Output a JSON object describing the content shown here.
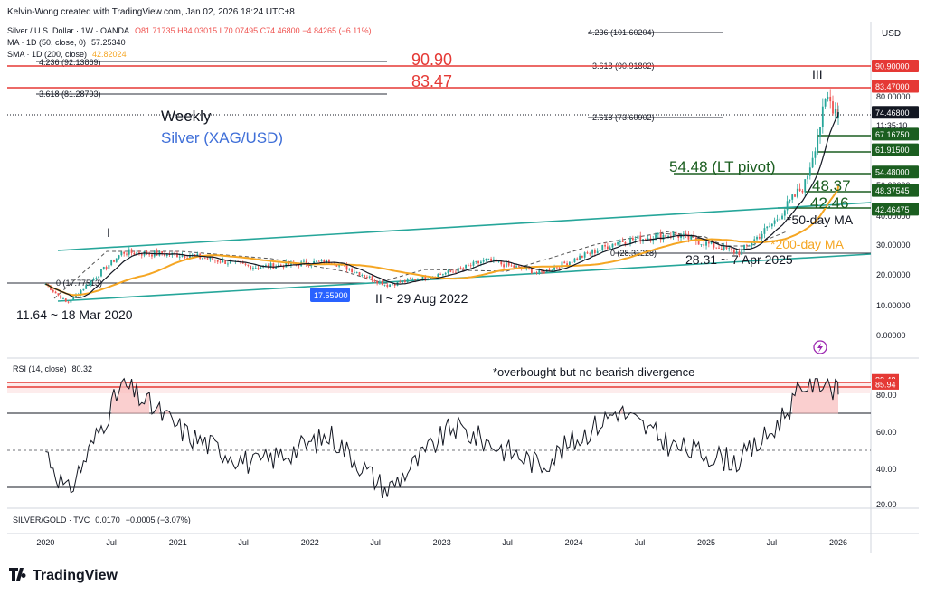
{
  "header": {
    "author_line": "Kelvin-Wong created with TradingView.com, Jan 02, 2026 18:24 UTC+8",
    "symbol_line": "Silver / U.S. Dollar · 1W · OANDA",
    "ohlc": "O81.71735  H84.03015  L70.07495  C74.46800  −4.84265 (−6.11%)",
    "ma_line": "MA · 1D (50, close, 0)",
    "ma_value": "57.25340",
    "sma_line": "SMA · 1D (200, close)",
    "sma_value": "42.82024",
    "currency": "USD"
  },
  "annotations": {
    "weekly": "Weekly",
    "instrument": "Silver (XAG/USD)",
    "level_9090": "90.90",
    "level_8347": "83.47",
    "wave_1": "I",
    "wave_2": "II ~ 29 Aug 2022",
    "wave_3": "III",
    "low_2020": "11.64 ~ 18 Mar 2020",
    "low_2025": "28.31 ~ 7 Apr 2025",
    "lt_pivot": "54.48 (LT pivot)",
    "level_4837": "48.37",
    "level_4246": "42.46",
    "ma50_label": "*50-day MA",
    "ma200_label": "*200-day MA",
    "rsi_note": "*overbought but no bearish divergence"
  },
  "fib_labels": [
    {
      "text": "4.236 (101.60204)"
    },
    {
      "text": "4.236 (92.13869)"
    },
    {
      "text": "3.618 (90.91802)"
    },
    {
      "text": "3.618 (81.28793)"
    },
    {
      "text": "2.618 (73.60902)"
    },
    {
      "text": "0 (17.77513)"
    },
    {
      "text": "0 (28.31228)"
    }
  ],
  "price_axis": {
    "ticks": [
      "80.00000",
      "50.00000",
      "40.00000",
      "30.00000",
      "20.00000",
      "10.00000",
      "0.00000"
    ],
    "tags": [
      {
        "text": "90.90000",
        "value": 90.9,
        "color": "#e53935"
      },
      {
        "text": "83.47000",
        "value": 83.47,
        "color": "#e53935"
      },
      {
        "text": "74.46800",
        "value": 74.468,
        "color": "#131722"
      },
      {
        "text": "67.16750",
        "value": 67.1675,
        "color": "#1b5e20"
      },
      {
        "text": "61.91500",
        "value": 61.915,
        "color": "#1b5e20"
      },
      {
        "text": "54.48000",
        "value": 54.48,
        "color": "#1b5e20"
      },
      {
        "text": "48.37545",
        "value": 48.37545,
        "color": "#1b5e20"
      },
      {
        "text": "42.46475",
        "value": 42.46475,
        "color": "#1b5e20"
      }
    ],
    "countdown": "11:35:10",
    "low_tag": "17.55900"
  },
  "rsi": {
    "label": "RSI (14, close)",
    "value": "80.32",
    "ticks": [
      "80.00",
      "60.00",
      "40.00",
      "20.00"
    ],
    "tags": [
      {
        "text": "88.48",
        "value": 88.48
      },
      {
        "text": "85.94",
        "value": 85.94
      }
    ]
  },
  "ratio_label": {
    "name": "SILVER/GOLD · TVC",
    "value": "0.0170",
    "change": "−0.0005 (−3.07%)"
  },
  "time_axis": [
    "2020",
    "Jul",
    "2021",
    "Jul",
    "2022",
    "Jul",
    "2023",
    "Jul",
    "2024",
    "Jul",
    "2025",
    "Jul",
    "2026"
  ],
  "brand": "TradingView",
  "colors": {
    "up": "#26a69a",
    "down": "#ef5350",
    "ma50": "#131722",
    "ma200": "#f5a623",
    "channel": "#26a69a",
    "resistance": "#e53935",
    "support": "#1b5e20",
    "rsi": "#131722"
  },
  "chart_data": [
    {
      "type": "line",
      "title": "Silver (XAG/USD) Weekly",
      "xlabel": "",
      "ylabel": "USD",
      "ylim": [
        0,
        100
      ],
      "x": [
        "2020-01",
        "2020-03",
        "2020-08",
        "2021-02",
        "2021-08",
        "2022-03",
        "2022-08",
        "2023-02",
        "2023-05",
        "2023-10",
        "2024-05",
        "2024-10",
        "2025-04",
        "2025-07",
        "2025-10",
        "2025-12",
        "2026-01"
      ],
      "series": [
        {
          "name": "Silver close",
          "values": [
            17.9,
            11.64,
            28.5,
            27.5,
            23.5,
            25.5,
            17.56,
            22.0,
            25.8,
            21.5,
            32.0,
            34.5,
            28.31,
            37.5,
            50.5,
            79.3,
            74.47
          ]
        }
      ],
      "key_levels": [
        90.9,
        83.47,
        67.1675,
        61.915,
        54.48,
        48.37545,
        42.46475
      ]
    },
    {
      "type": "line",
      "title": "RSI (14, close)",
      "xlabel": "",
      "ylabel": "",
      "ylim": [
        20,
        90
      ],
      "x": [
        "2020-01",
        "2020-03",
        "2020-08",
        "2021-02",
        "2021-08",
        "2022-03",
        "2022-08",
        "2023-02",
        "2023-05",
        "2023-10",
        "2024-05",
        "2024-10",
        "2025-04",
        "2025-07",
        "2025-10",
        "2025-12",
        "2026-01"
      ],
      "series": [
        {
          "name": "RSI",
          "values": [
            50,
            26,
            86,
            58,
            42,
            58,
            28,
            63,
            55,
            42,
            72,
            52,
            44,
            60,
            86,
            88.5,
            80.32
          ]
        }
      ],
      "levels": [
        70,
        50,
        30
      ]
    }
  ]
}
